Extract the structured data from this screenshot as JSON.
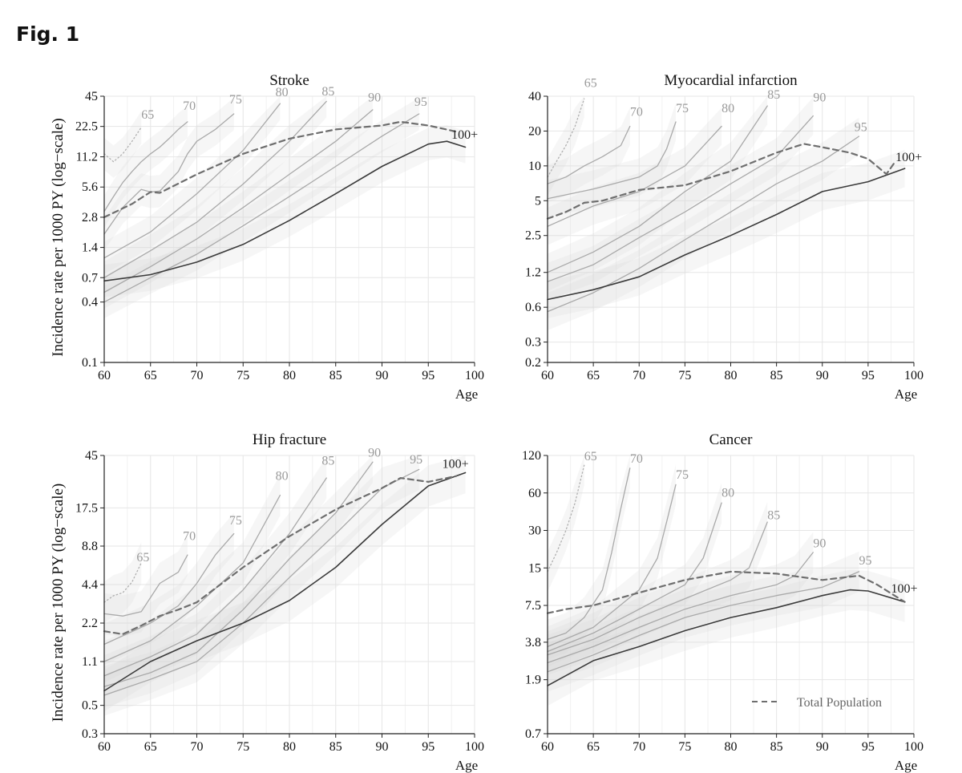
{
  "figure_label": "Fig. 1",
  "legend_label": "Total Population",
  "chart_data": [
    {
      "type": "line",
      "title": "Stroke",
      "xlabel": "Age",
      "ylabel": "Incidence rate per 1000 PY (log−scale)",
      "x_ticks": [
        60,
        65,
        70,
        75,
        80,
        85,
        90,
        95,
        100
      ],
      "y_ticks": [
        0.1,
        0.4,
        0.7,
        1.4,
        2.8,
        5.6,
        11.2,
        22.5,
        45
      ],
      "y_tick_labels": [
        "0.1",
        "0.4",
        "0.7",
        "1.4",
        "2.8",
        "5.6",
        "11.2",
        "22.5",
        "45"
      ],
      "series": [
        {
          "name": "65",
          "style": "dotted",
          "x": [
            60,
            61,
            62,
            63,
            64
          ],
          "y": [
            12,
            10,
            12,
            16,
            22
          ]
        },
        {
          "name": "70",
          "style": "cohort",
          "x": [
            60,
            61,
            62,
            63,
            64,
            65,
            66,
            67,
            68,
            69
          ],
          "y": [
            3.2,
            4.5,
            6.2,
            8,
            10,
            12,
            14,
            17,
            21,
            25
          ]
        },
        {
          "name": "75",
          "style": "cohort",
          "x": [
            60,
            62,
            64,
            65,
            66,
            68,
            69,
            70,
            72,
            74
          ],
          "y": [
            1.9,
            3.5,
            5.3,
            5.0,
            5.1,
            8,
            12,
            16,
            21,
            30
          ]
        },
        {
          "name": "80",
          "style": "cohort",
          "x": [
            60,
            65,
            70,
            75,
            79
          ],
          "y": [
            1.1,
            2,
            4.8,
            13,
            38
          ]
        },
        {
          "name": "85",
          "style": "cohort",
          "x": [
            60,
            65,
            70,
            75,
            80,
            84
          ],
          "y": [
            0.7,
            1.3,
            2.5,
            6,
            16,
            40
          ]
        },
        {
          "name": "90",
          "style": "cohort",
          "x": [
            60,
            65,
            70,
            75,
            80,
            85,
            89
          ],
          "y": [
            0.5,
            0.9,
            1.7,
            3.5,
            7.5,
            16,
            33
          ]
        },
        {
          "name": "95",
          "style": "cohort",
          "x": [
            60,
            65,
            70,
            75,
            80,
            85,
            90,
            94
          ],
          "y": [
            0.4,
            0.7,
            1.2,
            2.3,
            4.5,
            9,
            18,
            30
          ]
        },
        {
          "name": "100+",
          "style": "solid",
          "x": [
            60,
            65,
            70,
            75,
            80,
            85,
            90,
            95,
            97,
            99
          ],
          "y": [
            0.65,
            0.75,
            1.0,
            1.5,
            2.6,
            4.8,
            9,
            15,
            16,
            14
          ]
        },
        {
          "name": "Total Population",
          "style": "dashed",
          "x": [
            60,
            63,
            65,
            66,
            70,
            75,
            80,
            85,
            90,
            92,
            95,
            98
          ],
          "y": [
            2.8,
            3.8,
            5.0,
            4.9,
            7.5,
            12,
            17,
            21,
            23,
            25,
            23,
            20
          ]
        }
      ],
      "curve_labels": [
        {
          "text": "65",
          "x": 64,
          "y": 27
        },
        {
          "text": "70",
          "x": 68.5,
          "y": 33
        },
        {
          "text": "75",
          "x": 73.5,
          "y": 38
        },
        {
          "text": "80",
          "x": 78.5,
          "y": 45
        },
        {
          "text": "85",
          "x": 83.5,
          "y": 46
        },
        {
          "text": "90",
          "x": 88.5,
          "y": 40
        },
        {
          "text": "95",
          "x": 93.5,
          "y": 36
        },
        {
          "text": "100+",
          "x": 97.5,
          "y": 17
        }
      ]
    },
    {
      "type": "line",
      "title": "Myocardial infarction",
      "xlabel": "Age",
      "ylabel": "",
      "x_ticks": [
        60,
        65,
        70,
        75,
        80,
        85,
        90,
        95,
        100
      ],
      "y_ticks": [
        0.2,
        0.3,
        0.6,
        1.2,
        2.5,
        5,
        10,
        20,
        40
      ],
      "y_tick_labels": [
        "0.2",
        "0.3",
        "0.6",
        "1.2",
        "2.5",
        "5",
        "10",
        "20",
        "40"
      ],
      "series": [
        {
          "name": "65",
          "style": "dotted",
          "x": [
            60,
            61,
            62,
            63,
            64
          ],
          "y": [
            8,
            11,
            15,
            22,
            38
          ]
        },
        {
          "name": "70",
          "style": "cohort",
          "x": [
            60,
            62,
            64,
            66,
            68,
            69
          ],
          "y": [
            7,
            8,
            10,
            12,
            15,
            22
          ]
        },
        {
          "name": "75",
          "style": "cohort",
          "x": [
            60,
            65,
            70,
            72,
            73,
            74
          ],
          "y": [
            5.2,
            6.3,
            8,
            10,
            14,
            24
          ]
        },
        {
          "name": "80",
          "style": "cohort",
          "x": [
            60,
            65,
            70,
            75,
            79
          ],
          "y": [
            3.0,
            4.5,
            6,
            10,
            22
          ]
        },
        {
          "name": "85",
          "style": "cohort",
          "x": [
            60,
            65,
            70,
            75,
            80,
            84
          ],
          "y": [
            1.2,
            1.8,
            3,
            6,
            11,
            33
          ]
        },
        {
          "name": "90",
          "style": "cohort",
          "x": [
            60,
            65,
            70,
            75,
            80,
            85,
            89
          ],
          "y": [
            1.0,
            1.4,
            2.4,
            4,
            7,
            12,
            27
          ]
        },
        {
          "name": "95",
          "style": "cohort",
          "x": [
            60,
            65,
            70,
            75,
            80,
            85,
            90,
            94
          ],
          "y": [
            0.55,
            0.8,
            1.3,
            2.3,
            4,
            7,
            11,
            18
          ]
        },
        {
          "name": "100+",
          "style": "solid",
          "x": [
            60,
            65,
            70,
            75,
            80,
            85,
            90,
            95,
            99
          ],
          "y": [
            0.7,
            0.85,
            1.1,
            1.7,
            2.5,
            3.8,
            6,
            7.3,
            9.5
          ]
        },
        {
          "name": "Total Population",
          "style": "dashed",
          "x": [
            60,
            62,
            64,
            66,
            70,
            75,
            80,
            85,
            88,
            90,
            93,
            95,
            97,
            98
          ],
          "y": [
            3.5,
            4,
            4.8,
            5,
            6.2,
            6.8,
            9,
            13,
            15.5,
            14.5,
            13,
            11.5,
            8.5,
            11
          ]
        }
      ],
      "curve_labels": [
        {
          "text": "65",
          "x": 64,
          "y": 48
        },
        {
          "text": "70",
          "x": 69,
          "y": 27
        },
        {
          "text": "75",
          "x": 74,
          "y": 29
        },
        {
          "text": "80",
          "x": 79,
          "y": 29
        },
        {
          "text": "85",
          "x": 84,
          "y": 38
        },
        {
          "text": "90",
          "x": 89,
          "y": 36
        },
        {
          "text": "95",
          "x": 93.5,
          "y": 20
        },
        {
          "text": "100+",
          "x": 98,
          "y": 11
        }
      ]
    },
    {
      "type": "line",
      "title": "Hip fracture",
      "xlabel": "Age",
      "ylabel": "Incidence rate per 1000 PY (log−scale)",
      "x_ticks": [
        60,
        65,
        70,
        75,
        80,
        85,
        90,
        95,
        100
      ],
      "y_ticks": [
        0.3,
        0.5,
        1.1,
        2.2,
        4.4,
        8.8,
        17.5,
        45
      ],
      "y_tick_labels": [
        "0.3",
        "0.5",
        "1.1",
        "2.2",
        "4.4",
        "8.8",
        "17.5",
        "45"
      ],
      "series": [
        {
          "name": "65",
          "style": "dotted",
          "x": [
            60,
            61,
            62,
            63,
            64
          ],
          "y": [
            3.2,
            3.6,
            3.8,
            4.6,
            6.5
          ]
        },
        {
          "name": "70",
          "style": "cohort",
          "x": [
            60,
            62,
            64,
            66,
            68,
            69
          ],
          "y": [
            2.6,
            2.5,
            2.7,
            4.5,
            5.5,
            7.5
          ]
        },
        {
          "name": "75",
          "style": "cohort",
          "x": [
            60,
            65,
            68,
            70,
            72,
            74
          ],
          "y": [
            1.5,
            2.2,
            3,
            4.5,
            7.5,
            11
          ]
        },
        {
          "name": "80",
          "style": "cohort",
          "x": [
            60,
            65,
            70,
            75,
            79
          ],
          "y": [
            1.1,
            1.6,
            3,
            6.5,
            22
          ]
        },
        {
          "name": "85",
          "style": "cohort",
          "x": [
            60,
            65,
            70,
            75,
            80,
            84
          ],
          "y": [
            0.85,
            1.2,
            1.8,
            4,
            11,
            30
          ]
        },
        {
          "name": "90",
          "style": "cohort",
          "x": [
            60,
            65,
            70,
            75,
            80,
            85,
            89
          ],
          "y": [
            0.7,
            0.9,
            1.3,
            2.8,
            7,
            16,
            40
          ]
        },
        {
          "name": "95",
          "style": "cohort",
          "x": [
            60,
            65,
            70,
            75,
            80,
            85,
            90,
            94
          ],
          "y": [
            0.6,
            0.8,
            1.1,
            2.2,
            5,
            11,
            25,
            35
          ]
        },
        {
          "name": "100+",
          "style": "solid",
          "x": [
            60,
            65,
            70,
            75,
            80,
            85,
            90,
            95,
            99
          ],
          "y": [
            0.65,
            1.1,
            1.6,
            2.2,
            3.3,
            6,
            13,
            26,
            33
          ]
        },
        {
          "name": "Total Population",
          "style": "dashed",
          "x": [
            60,
            62,
            64,
            66,
            68,
            70,
            75,
            80,
            85,
            90,
            92,
            95,
            98
          ],
          "y": [
            1.9,
            1.8,
            2.1,
            2.5,
            2.8,
            3.2,
            6,
            10.5,
            17,
            25,
            30,
            28,
            31
          ]
        }
      ],
      "curve_labels": [
        {
          "text": "65",
          "x": 63.5,
          "y": 6.7
        },
        {
          "text": "70",
          "x": 68.5,
          "y": 9.8
        },
        {
          "text": "75",
          "x": 73.5,
          "y": 13
        },
        {
          "text": "80",
          "x": 78.5,
          "y": 29
        },
        {
          "text": "85",
          "x": 83.5,
          "y": 38
        },
        {
          "text": "90",
          "x": 88.5,
          "y": 44
        },
        {
          "text": "95",
          "x": 93,
          "y": 39
        },
        {
          "text": "100+",
          "x": 96.5,
          "y": 36
        }
      ]
    },
    {
      "type": "line",
      "title": "Cancer",
      "xlabel": "Age",
      "ylabel": "",
      "x_ticks": [
        60,
        65,
        70,
        75,
        80,
        85,
        90,
        95,
        100
      ],
      "y_ticks": [
        0.7,
        1.9,
        3.8,
        7.5,
        15,
        30,
        60,
        120
      ],
      "y_tick_labels": [
        "0.7",
        "1.9",
        "3.8",
        "7.5",
        "15",
        "30",
        "60",
        "120"
      ],
      "series": [
        {
          "name": "65",
          "style": "dotted",
          "x": [
            60,
            61,
            62,
            63,
            64
          ],
          "y": [
            14,
            20,
            30,
            50,
            100
          ]
        },
        {
          "name": "70",
          "style": "cohort",
          "x": [
            60,
            62,
            64,
            66,
            67,
            68,
            69
          ],
          "y": [
            4,
            4.5,
            6,
            10,
            20,
            45,
            95
          ]
        },
        {
          "name": "75",
          "style": "cohort",
          "x": [
            60,
            65,
            70,
            72,
            73,
            74
          ],
          "y": [
            3.5,
            5,
            10,
            18,
            35,
            70
          ]
        },
        {
          "name": "80",
          "style": "cohort",
          "x": [
            60,
            65,
            70,
            75,
            77,
            79
          ],
          "y": [
            3.2,
            4.5,
            7,
            11,
            18,
            50
          ]
        },
        {
          "name": "85",
          "style": "cohort",
          "x": [
            60,
            65,
            70,
            75,
            80,
            82,
            84
          ],
          "y": [
            3,
            4,
            6,
            8.5,
            12,
            15,
            35
          ]
        },
        {
          "name": "90",
          "style": "cohort",
          "x": [
            60,
            65,
            70,
            75,
            80,
            85,
            87,
            89
          ],
          "y": [
            2.6,
            3.5,
            5,
            7,
            9,
            11,
            13,
            20
          ]
        },
        {
          "name": "95",
          "style": "cohort",
          "x": [
            60,
            65,
            70,
            75,
            80,
            85,
            90,
            94
          ],
          "y": [
            2.2,
            3,
            4.3,
            6,
            7.5,
            9,
            10.5,
            14
          ]
        },
        {
          "name": "100+",
          "style": "solid",
          "x": [
            60,
            65,
            70,
            75,
            80,
            85,
            90,
            93,
            95,
            99
          ],
          "y": [
            1.7,
            2.7,
            3.5,
            4.7,
            6,
            7.2,
            9,
            10,
            9.8,
            8
          ]
        },
        {
          "name": "Total Population",
          "style": "dashed",
          "x": [
            60,
            62,
            65,
            70,
            75,
            80,
            85,
            90,
            94,
            96,
            99
          ],
          "y": [
            6.5,
            7,
            7.5,
            9.5,
            12,
            14,
            13.5,
            12,
            13,
            11,
            8
          ]
        }
      ],
      "curve_labels": [
        {
          "text": "65",
          "x": 64,
          "y": 110
        },
        {
          "text": "70",
          "x": 69,
          "y": 105
        },
        {
          "text": "75",
          "x": 74,
          "y": 78
        },
        {
          "text": "80",
          "x": 79,
          "y": 56
        },
        {
          "text": "85",
          "x": 84,
          "y": 37
        },
        {
          "text": "90",
          "x": 89,
          "y": 22
        },
        {
          "text": "95",
          "x": 94,
          "y": 16
        },
        {
          "text": "100+",
          "x": 97.5,
          "y": 9.5
        }
      ]
    }
  ]
}
